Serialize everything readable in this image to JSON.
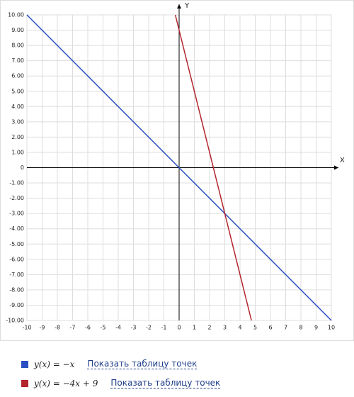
{
  "chart_data": {
    "type": "line",
    "x_label": "X",
    "y_label": "Y",
    "xlim": [
      -10,
      10
    ],
    "ylim": [
      -10,
      10
    ],
    "xticks": [
      -10,
      -9,
      -8,
      -7,
      -6,
      -5,
      -4,
      -3,
      -2,
      -1,
      0,
      1,
      2,
      3,
      4,
      5,
      6,
      7,
      8,
      9,
      10
    ],
    "yticks": [
      {
        "value": 10,
        "label": "10.00"
      },
      {
        "value": 9,
        "label": "9.00"
      },
      {
        "value": 8,
        "label": "8.00"
      },
      {
        "value": 7,
        "label": "7.00"
      },
      {
        "value": 6,
        "label": "6.00"
      },
      {
        "value": 5,
        "label": "5.00"
      },
      {
        "value": 4,
        "label": "4.00"
      },
      {
        "value": 3,
        "label": "3.00"
      },
      {
        "value": 2,
        "label": "2.00"
      },
      {
        "value": 1,
        "label": "1.00"
      },
      0,
      {
        "value": -1,
        "label": "-1.00"
      },
      {
        "value": -2,
        "label": "-2.00"
      },
      {
        "value": -3,
        "label": "-3.00"
      },
      {
        "value": -4,
        "label": "-4.00"
      },
      {
        "value": -5,
        "label": "-5.00"
      },
      {
        "value": -6,
        "label": "-6.00"
      },
      {
        "value": -7,
        "label": "-7.00"
      },
      {
        "value": -8,
        "label": "-8.00"
      },
      {
        "value": -9,
        "label": "-9.00"
      },
      {
        "value": -10,
        "label": "-10.00"
      }
    ],
    "grid": true,
    "series": [
      {
        "name": "y(x) = −x",
        "color": "#2a4fc2",
        "x": [
          -10,
          10
        ],
        "values": [
          10,
          -10
        ]
      },
      {
        "name": "y(x) = −4x + 9",
        "color": "#b3262e",
        "x": [
          -0.25,
          4.75
        ],
        "values": [
          10,
          -10
        ]
      }
    ],
    "legend_link": "Показать таблицу точек"
  }
}
